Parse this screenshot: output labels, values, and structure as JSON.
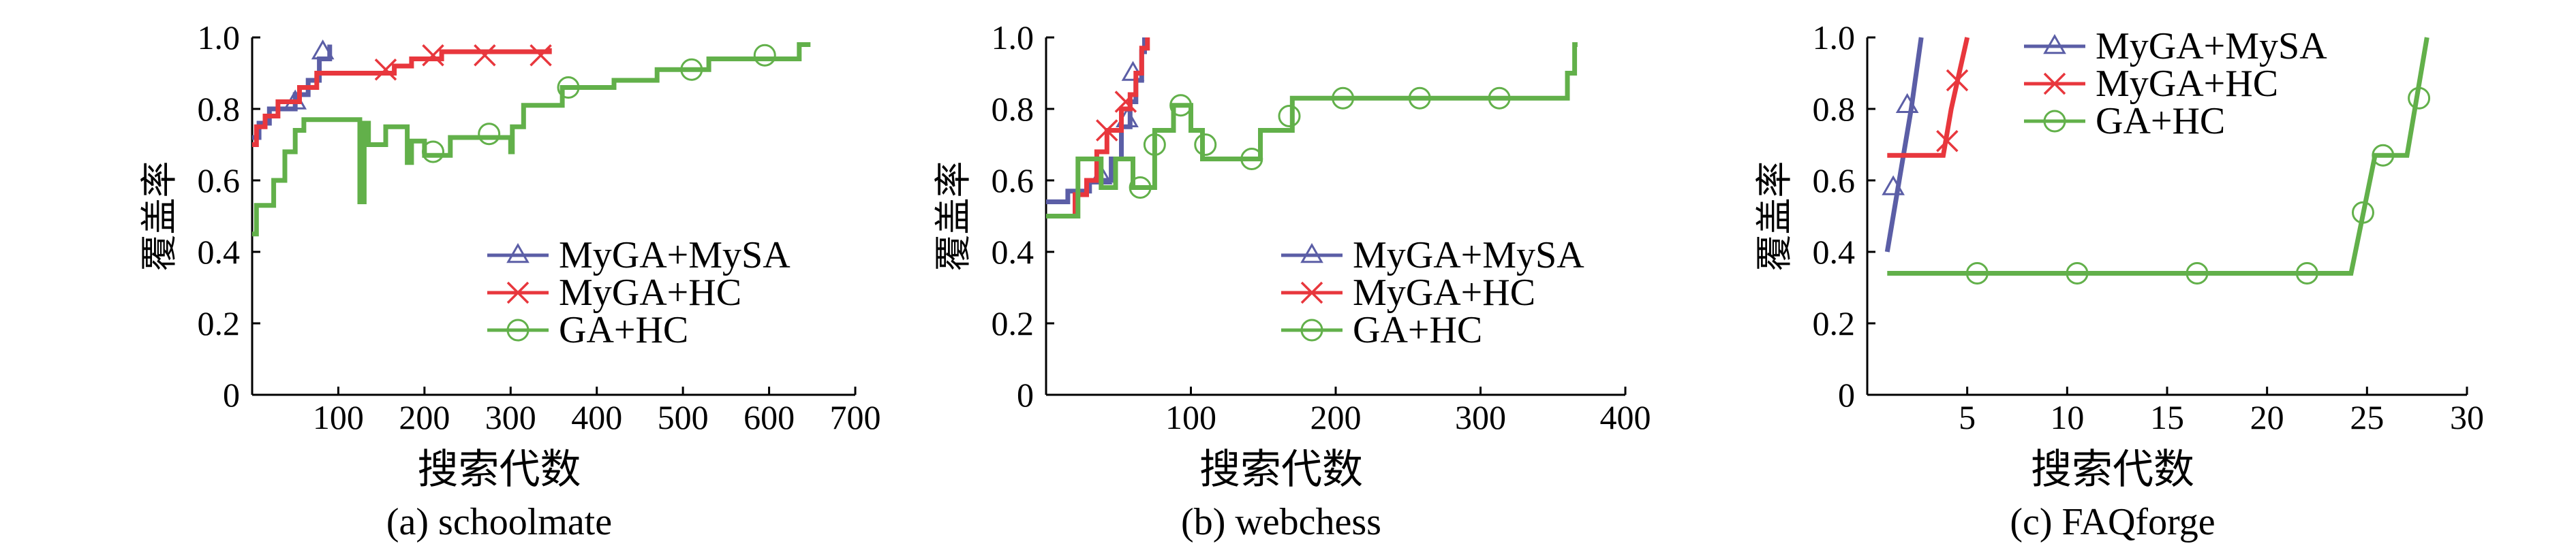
{
  "figure": {
    "ylabel": "覆盖率",
    "xlabel": "搜索代数"
  },
  "colors": {
    "MyGA+MySA": "#5b5ea6",
    "MyGA+HC": "#e8373d",
    "GA+HC": "#62b04a"
  },
  "chart_data": [
    {
      "type": "line",
      "caption": "(a) schoolmate",
      "xlabel": "搜索代数",
      "ylabel": "覆盖率",
      "xlim": [
        0,
        700
      ],
      "ylim": [
        0,
        1.0
      ],
      "xticks": [
        100,
        200,
        300,
        400,
        500,
        600,
        700
      ],
      "yticks": [
        0,
        0.2,
        0.4,
        0.6,
        0.8,
        1.0
      ],
      "legend_position": "bottom-right",
      "series": [
        {
          "name": "MyGA+MySA",
          "marker": "triangle",
          "steps": [
            [
              0,
              0.72
            ],
            [
              8,
              0.76
            ],
            [
              20,
              0.8
            ],
            [
              45,
              0.8
            ],
            [
              50,
              0.84
            ],
            [
              65,
              0.88
            ],
            [
              78,
              0.94
            ],
            [
              90,
              0.98
            ]
          ],
          "markers": [
            [
              50,
              0.82
            ],
            [
              82,
              0.96
            ]
          ]
        },
        {
          "name": "MyGA+HC",
          "marker": "x",
          "steps": [
            [
              0,
              0.7
            ],
            [
              5,
              0.75
            ],
            [
              15,
              0.78
            ],
            [
              30,
              0.82
            ],
            [
              55,
              0.86
            ],
            [
              75,
              0.9
            ],
            [
              110,
              0.9
            ],
            [
              165,
              0.92
            ],
            [
              185,
              0.94
            ],
            [
              220,
              0.96
            ],
            [
              345,
              0.97
            ]
          ],
          "markers": [
            [
              155,
              0.91
            ],
            [
              210,
              0.95
            ],
            [
              270,
              0.95
            ],
            [
              335,
              0.95
            ]
          ]
        },
        {
          "name": "GA+HC",
          "marker": "circle",
          "points": [
            [
              0,
              0.45
            ],
            [
              5,
              0.45
            ],
            [
              5,
              0.53
            ],
            [
              25,
              0.53
            ],
            [
              25,
              0.6
            ],
            [
              38,
              0.6
            ],
            [
              38,
              0.68
            ],
            [
              50,
              0.68
            ],
            [
              50,
              0.74
            ],
            [
              60,
              0.74
            ],
            [
              60,
              0.77
            ],
            [
              125,
              0.77
            ],
            [
              125,
              0.54
            ],
            [
              130,
              0.54
            ],
            [
              130,
              0.76
            ],
            [
              135,
              0.76
            ],
            [
              135,
              0.7
            ],
            [
              155,
              0.7
            ],
            [
              155,
              0.75
            ],
            [
              180,
              0.75
            ],
            [
              180,
              0.65
            ],
            [
              185,
              0.65
            ],
            [
              185,
              0.71
            ],
            [
              200,
              0.71
            ],
            [
              200,
              0.67
            ],
            [
              230,
              0.67
            ],
            [
              230,
              0.72
            ],
            [
              300,
              0.72
            ],
            [
              300,
              0.68
            ],
            [
              302,
              0.68
            ],
            [
              302,
              0.75
            ],
            [
              315,
              0.75
            ],
            [
              315,
              0.81
            ],
            [
              360,
              0.81
            ],
            [
              360,
              0.86
            ],
            [
              420,
              0.86
            ],
            [
              420,
              0.88
            ],
            [
              470,
              0.88
            ],
            [
              470,
              0.91
            ],
            [
              530,
              0.91
            ],
            [
              530,
              0.94
            ],
            [
              635,
              0.94
            ],
            [
              635,
              0.98
            ],
            [
              648,
              0.98
            ]
          ],
          "markers": [
            [
              210,
              0.68
            ],
            [
              275,
              0.73
            ],
            [
              367,
              0.86
            ],
            [
              510,
              0.91
            ],
            [
              595,
              0.95
            ]
          ]
        }
      ]
    },
    {
      "type": "line",
      "caption": "(b) webchess",
      "xlabel": "搜索代数",
      "ylabel": "覆盖率",
      "xlim": [
        0,
        400
      ],
      "ylim": [
        0,
        1.0
      ],
      "xticks": [
        100,
        200,
        300,
        400
      ],
      "yticks": [
        0,
        0.2,
        0.4,
        0.6,
        0.8,
        1.0
      ],
      "legend_position": "bottom-right",
      "series": [
        {
          "name": "MyGA+MySA",
          "marker": "triangle",
          "steps": [
            [
              0,
              0.54
            ],
            [
              15,
              0.57
            ],
            [
              30,
              0.6
            ],
            [
              45,
              0.66
            ],
            [
              52,
              0.75
            ],
            [
              58,
              0.82
            ],
            [
              62,
              0.88
            ],
            [
              66,
              0.96
            ],
            [
              68,
              1.0
            ]
          ],
          "markers": [
            [
              38,
              0.61
            ],
            [
              56,
              0.77
            ],
            [
              60,
              0.9
            ]
          ]
        },
        {
          "name": "MyGA+HC",
          "marker": "x",
          "steps": [
            [
              0,
              0.5
            ],
            [
              20,
              0.56
            ],
            [
              28,
              0.6
            ],
            [
              35,
              0.68
            ],
            [
              42,
              0.74
            ],
            [
              52,
              0.8
            ],
            [
              58,
              0.84
            ],
            [
              62,
              0.9
            ],
            [
              66,
              0.97
            ],
            [
              70,
              1.0
            ]
          ],
          "markers": [
            [
              42,
              0.74
            ],
            [
              55,
              0.82
            ]
          ]
        },
        {
          "name": "GA+HC",
          "marker": "circle",
          "points": [
            [
              0,
              0.5
            ],
            [
              22,
              0.5
            ],
            [
              22,
              0.66
            ],
            [
              38,
              0.66
            ],
            [
              38,
              0.58
            ],
            [
              48,
              0.58
            ],
            [
              48,
              0.66
            ],
            [
              60,
              0.66
            ],
            [
              60,
              0.58
            ],
            [
              75,
              0.58
            ],
            [
              75,
              0.74
            ],
            [
              88,
              0.74
            ],
            [
              88,
              0.81
            ],
            [
              100,
              0.81
            ],
            [
              100,
              0.74
            ],
            [
              108,
              0.74
            ],
            [
              108,
              0.66
            ],
            [
              148,
              0.66
            ],
            [
              148,
              0.74
            ],
            [
              170,
              0.74
            ],
            [
              170,
              0.83
            ],
            [
              360,
              0.83
            ],
            [
              360,
              0.9
            ],
            [
              365,
              0.9
            ],
            [
              365,
              0.98
            ],
            [
              367,
              0.98
            ]
          ],
          "markers": [
            [
              65,
              0.58
            ],
            [
              75,
              0.7
            ],
            [
              93,
              0.81
            ],
            [
              110,
              0.7
            ],
            [
              142,
              0.66
            ],
            [
              168,
              0.78
            ],
            [
              205,
              0.83
            ],
            [
              258,
              0.83
            ],
            [
              313,
              0.83
            ]
          ]
        }
      ]
    },
    {
      "type": "line",
      "caption": "(c) FAQforge",
      "xlabel": "搜索代数",
      "ylabel": "覆盖率",
      "xlim": [
        0,
        30
      ],
      "ylim": [
        0,
        1.0
      ],
      "xticks": [
        5,
        10,
        15,
        20,
        25,
        30
      ],
      "yticks": [
        0,
        0.2,
        0.4,
        0.6,
        0.8,
        1.0
      ],
      "legend_position": "top-right",
      "series": [
        {
          "name": "MyGA+MySA",
          "marker": "triangle",
          "points": [
            [
              1.0,
              0.4
            ],
            [
              1.6,
              0.6
            ],
            [
              2.2,
              0.8
            ],
            [
              2.7,
              1.0
            ]
          ],
          "markers": [
            [
              1.3,
              0.58
            ],
            [
              2.0,
              0.81
            ]
          ]
        },
        {
          "name": "MyGA+HC",
          "marker": "x",
          "points": [
            [
              1.0,
              0.67
            ],
            [
              3.8,
              0.67
            ],
            [
              4.2,
              0.8
            ],
            [
              4.6,
              0.9
            ],
            [
              5.0,
              1.0
            ]
          ],
          "markers": [
            [
              4.0,
              0.71
            ],
            [
              4.5,
              0.88
            ]
          ]
        },
        {
          "name": "GA+HC",
          "marker": "circle",
          "points": [
            [
              1.0,
              0.34
            ],
            [
              24.2,
              0.34
            ],
            [
              25.4,
              0.67
            ],
            [
              27.0,
              0.67
            ],
            [
              28.0,
              1.0
            ]
          ],
          "markers": [
            [
              5.5,
              0.34
            ],
            [
              10.5,
              0.34
            ],
            [
              16.5,
              0.34
            ],
            [
              22.0,
              0.34
            ],
            [
              24.8,
              0.51
            ],
            [
              25.8,
              0.67
            ],
            [
              27.6,
              0.83
            ]
          ]
        }
      ]
    }
  ]
}
